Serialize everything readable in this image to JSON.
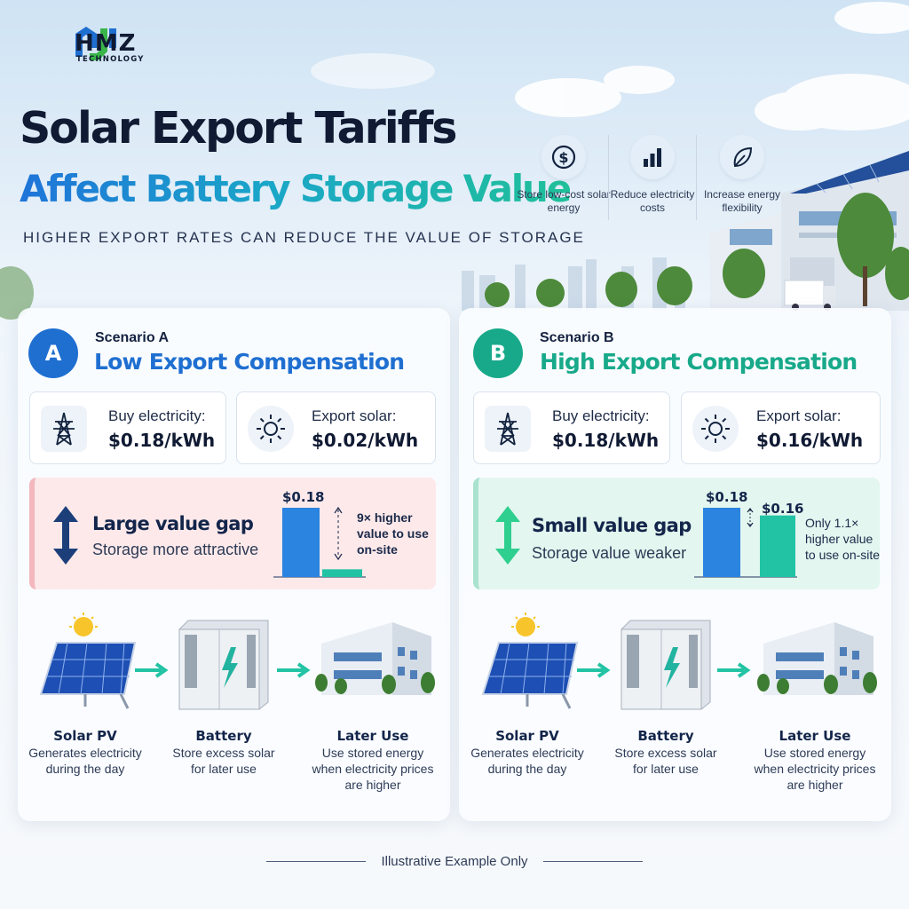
{
  "logo": {
    "name": "HMZ",
    "sub": "TECHNOLOGY"
  },
  "header": {
    "title_line1": "Solar Export Tariffs",
    "title_line2": "Affect Battery Storage Value",
    "subtitle": "HIGHER EXPORT RATES CAN REDUCE THE VALUE OF STORAGE"
  },
  "features": [
    {
      "icon": "dollar-icon",
      "label": "Store low-cost solar energy"
    },
    {
      "icon": "bar-chart-icon",
      "label": "Reduce electricity costs"
    },
    {
      "icon": "leaf-icon",
      "label": "Increase energy flexibility"
    }
  ],
  "scenarios": [
    {
      "badge": "A",
      "label": "Scenario A",
      "title": "Low Export Compensation",
      "accent": "#1f6fd1",
      "buy_label": "Buy electricity:",
      "buy_price": "$0.18/kWh",
      "export_label": "Export solar:",
      "export_price": "$0.02/kWh",
      "gap_title": "Large value gap",
      "gap_sub": "Storage more attractive",
      "bar_buy_label": "$0.18",
      "bar_buy_value": 0.18,
      "bar_export_value": 0.02,
      "note_line1": "9× higher",
      "note_line2": "value to use",
      "note_line3": "on-site"
    },
    {
      "badge": "B",
      "label": "Scenario B",
      "title": "High Export Compensation",
      "accent": "#17a98a",
      "buy_label": "Buy electricity:",
      "buy_price": "$0.18/kWh",
      "export_label": "Export solar:",
      "export_price": "$0.16/kWh",
      "gap_title": "Small value gap",
      "gap_sub": "Storage value weaker",
      "bar_buy_label": "$0.18",
      "bar_export_label": "$0.16",
      "bar_buy_value": 0.18,
      "bar_export_value": 0.16,
      "note_line1": "Only 1.1×",
      "note_line2": "higher value",
      "note_line3": "to use on-site"
    }
  ],
  "flow": [
    {
      "name": "Solar PV",
      "desc1": "Generates electricity",
      "desc2": "during the day",
      "desc3": ""
    },
    {
      "name": "Battery",
      "desc1": "Store excess solar",
      "desc2": "for later use",
      "desc3": ""
    },
    {
      "name": "Later Use",
      "desc1": "Use stored energy",
      "desc2": "when electricity prices",
      "desc3": "are higher"
    }
  ],
  "footer": {
    "text": "Illustrative Example Only"
  },
  "colors": {
    "blue": "#2a84e0",
    "teal": "#22c3a4",
    "dark": "#101a33"
  }
}
